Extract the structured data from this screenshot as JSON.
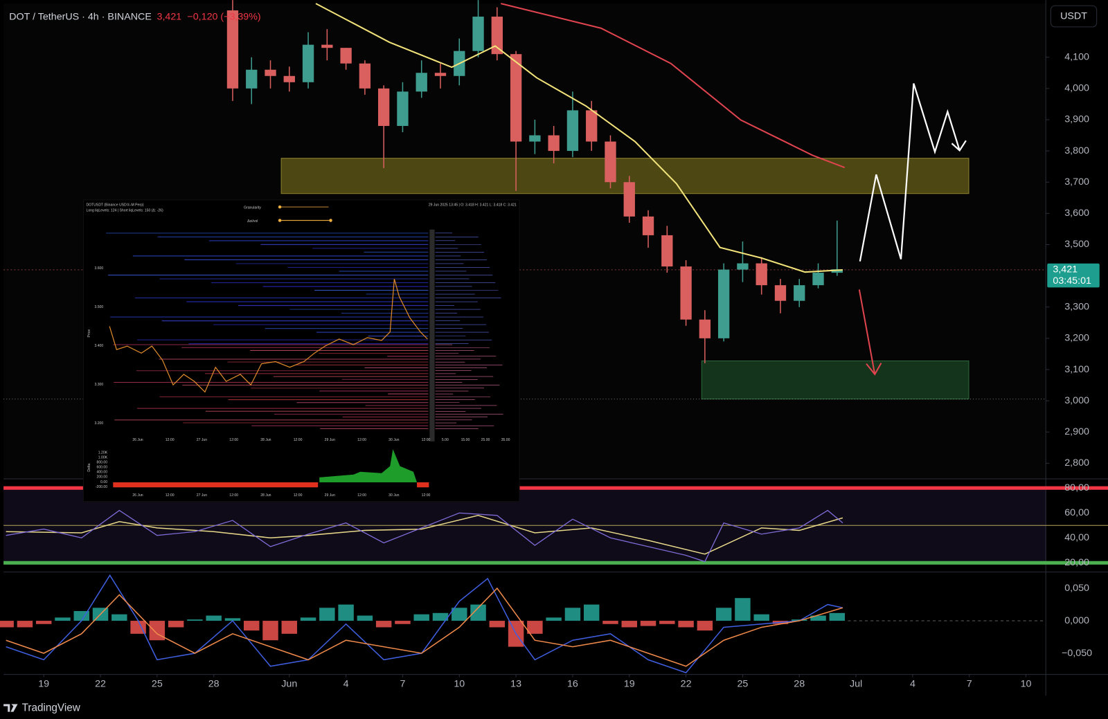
{
  "header": {
    "symbol": "DOT / TetherUS · 4h · BINANCE",
    "price": "3,421",
    "change": "−0,120 (−3,39%)"
  },
  "currency_button": "USDT",
  "price_label": {
    "price": "3,421",
    "countdown": "03:45:01"
  },
  "footer": "TradingView",
  "chart_data": [
    {
      "type": "candlestick",
      "x": [
        29,
        30,
        31,
        32,
        33,
        34,
        35,
        36,
        37,
        38,
        39,
        40,
        41,
        42,
        43,
        44,
        45,
        46,
        47,
        48,
        49,
        50,
        51,
        52,
        53,
        54,
        55,
        56,
        57,
        58,
        59,
        60,
        61
      ],
      "open": [
        4250,
        4000,
        4060,
        4040,
        4020,
        4140,
        4130,
        4080,
        4000,
        3880,
        3990,
        4050,
        4040,
        4120,
        4230,
        4110,
        3830,
        3850,
        3800,
        3930,
        3830,
        3700,
        3590,
        3530,
        3430,
        3260,
        3200,
        3420,
        3440,
        3370,
        3320,
        3370,
        3410
      ],
      "high": [
        4283,
        4100,
        4090,
        4070,
        4180,
        4190,
        4130,
        4090,
        4010,
        4020,
        4090,
        4080,
        4160,
        4283,
        4260,
        4120,
        3900,
        3880,
        3990,
        3960,
        3850,
        3720,
        3610,
        3560,
        3450,
        3290,
        3440,
        3510,
        3460,
        3390,
        3390,
        3440,
        3577
      ],
      "low": [
        3960,
        3950,
        4000,
        3990,
        4000,
        4090,
        4060,
        3980,
        3745,
        3860,
        3970,
        4000,
        4010,
        4100,
        4090,
        3672,
        3790,
        3760,
        3780,
        3800,
        3680,
        3570,
        3490,
        3410,
        3240,
        3120,
        3190,
        3380,
        3340,
        3280,
        3300,
        3360,
        3400
      ],
      "close": [
        4000,
        4060,
        4040,
        4020,
        4140,
        4130,
        4080,
        4000,
        3880,
        3990,
        4050,
        4040,
        4120,
        4230,
        4110,
        3830,
        3850,
        3800,
        3930,
        3830,
        3700,
        3590,
        3530,
        3430,
        3260,
        3200,
        3420,
        3440,
        3370,
        3320,
        3370,
        3410,
        3421
      ],
      "colors": {
        "up": "#3f9d8f",
        "down": "#d9605e"
      },
      "lines": [
        {
          "color": "#f2e27a",
          "x": [
            33.4,
            37.3,
            40.6,
            42.9,
            45.1,
            47.7,
            50.3,
            52.5,
            54.8,
            57,
            59.3,
            61.3
          ],
          "values": [
            4272,
            4148,
            4068,
            4136,
            4034,
            3944,
            3830,
            3695,
            3491,
            3457,
            3412,
            3419
          ]
        },
        {
          "color": "#e0444f",
          "x": [
            43.2,
            48.5,
            52.2,
            55.9,
            59.7,
            61.4
          ],
          "values": [
            4272,
            4193,
            4080,
            3899,
            3786,
            3747
          ]
        }
      ],
      "xlim": [
        16.87,
        72.05
      ],
      "xticks": [
        19,
        22,
        25,
        28,
        {
          "value": 32,
          "label": "Jun"
        },
        {
          "value": 35,
          "label": "4"
        },
        {
          "value": 38,
          "label": "7"
        },
        {
          "value": 41,
          "label": "10"
        },
        {
          "value": 44,
          "label": "13"
        },
        {
          "value": 47,
          "label": "16"
        },
        {
          "value": 50,
          "label": "19"
        },
        {
          "value": 53,
          "label": "22"
        },
        {
          "value": 56,
          "label": "25"
        },
        {
          "value": 59,
          "label": "28"
        },
        {
          "value": 62,
          "label": "Jul"
        },
        {
          "value": 65,
          "label": "4"
        },
        {
          "value": 68,
          "label": "7"
        },
        {
          "value": 71,
          "label": "10"
        }
      ],
      "ylim": [
        2750,
        4283
      ],
      "yticks": [
        {
          "value": 4100,
          "label": "4,100"
        },
        {
          "value": 4000,
          "label": "4,000"
        },
        {
          "value": 3900,
          "label": "3,900"
        },
        {
          "value": 3800,
          "label": "3,800"
        },
        {
          "value": 3700,
          "label": "3,700"
        },
        {
          "value": 3600,
          "label": "3,600"
        },
        {
          "value": 3500,
          "label": "3,500"
        },
        {
          "value": 3300,
          "label": "3,300"
        },
        {
          "value": 3200,
          "label": "3,200"
        },
        {
          "value": 3100,
          "label": "3,100"
        },
        {
          "value": 3000,
          "label": "3,000"
        },
        {
          "value": 2900,
          "label": "2,900"
        },
        {
          "value": 2800,
          "label": "2,800"
        }
      ],
      "grid": false
    },
    {
      "type": "rsi",
      "x": [
        17,
        19,
        21,
        23,
        25,
        27,
        29,
        31,
        33,
        35,
        37,
        39,
        41,
        43,
        45,
        47,
        49,
        51,
        53,
        54,
        55,
        57,
        59,
        60.5,
        61.3
      ],
      "values": [
        42,
        47,
        40,
        62,
        42,
        45,
        54,
        33,
        43,
        52,
        36,
        48,
        60,
        58,
        34,
        55,
        40,
        33,
        26,
        21,
        52,
        43,
        48,
        62,
        52
      ],
      "color": "#7e6bd6",
      "ma": {
        "color": "#e8d98a",
        "x": [
          17,
          21,
          23,
          25,
          28,
          31,
          33,
          36,
          39,
          42,
          45,
          48,
          51,
          54,
          57,
          59,
          61.3
        ],
        "values": [
          45,
          44,
          53,
          48,
          45,
          40,
          42,
          46,
          47,
          58,
          44,
          48,
          38,
          27,
          48,
          46,
          56
        ]
      },
      "levels": [
        {
          "value": 80,
          "color": "#f23645"
        },
        {
          "value": 50,
          "color": "#b8a85a"
        },
        {
          "value": 20,
          "color": "#4caf50"
        }
      ],
      "ylim": [
        12.6,
        86.2
      ],
      "yticks": [
        {
          "value": 80,
          "label": "80,00"
        },
        {
          "value": 60,
          "label": "60,00"
        },
        {
          "value": 40,
          "label": "40,00"
        },
        {
          "value": 20,
          "label": "20,00"
        }
      ]
    },
    {
      "type": "macd",
      "x": [
        17,
        18,
        19,
        20,
        21,
        22,
        23,
        24,
        25,
        26,
        27,
        28,
        29,
        30,
        31,
        32,
        33,
        34,
        35,
        36,
        37,
        38,
        39,
        40,
        41,
        42,
        43,
        44,
        45,
        46,
        47,
        48,
        49,
        50,
        51,
        52,
        53,
        54,
        55,
        56,
        57,
        58,
        59,
        60,
        61
      ],
      "histogram": [
        -0.01,
        -0.01,
        -0.005,
        0.005,
        0.015,
        0.02,
        0.01,
        -0.02,
        -0.03,
        -0.01,
        0.002,
        0.008,
        0.004,
        -0.015,
        -0.03,
        -0.02,
        0.005,
        0.02,
        0.025,
        0.008,
        -0.01,
        -0.005,
        0.01,
        0.012,
        0.02,
        0.025,
        -0.01,
        -0.04,
        -0.02,
        0.005,
        0.02,
        0.025,
        -0.005,
        -0.01,
        -0.008,
        -0.005,
        -0.01,
        -0.015,
        0.02,
        0.035,
        0.01,
        -0.005,
        0.002,
        0.008,
        0.012
      ],
      "colors": {
        "up": "#26a69a",
        "down": "#ef5350"
      },
      "macd": {
        "color": "#3f5fe0",
        "x": [
          17,
          19,
          21,
          22.5,
          24,
          25,
          27,
          29,
          31,
          33,
          35,
          37,
          39,
          41,
          42.5,
          44,
          45,
          47,
          49,
          51,
          53,
          55,
          57,
          59,
          60.5,
          61.3
        ],
        "values": [
          -0.04,
          -0.06,
          0.0,
          0.07,
          0.0,
          -0.06,
          -0.05,
          0.0,
          -0.07,
          -0.06,
          -0.005,
          -0.06,
          -0.05,
          0.03,
          0.065,
          -0.02,
          -0.06,
          -0.03,
          -0.02,
          -0.06,
          -0.08,
          -0.01,
          -0.005,
          0.0,
          0.025,
          0.02
        ]
      },
      "signal": {
        "color": "#f08a4b",
        "x": [
          17,
          19,
          21,
          23,
          25,
          27,
          29,
          31,
          33,
          35,
          37,
          39,
          41,
          43,
          45,
          47,
          49,
          51,
          53,
          55,
          57,
          59,
          61.3
        ],
        "values": [
          -0.03,
          -0.05,
          -0.02,
          0.04,
          -0.02,
          -0.05,
          -0.02,
          -0.04,
          -0.06,
          -0.03,
          -0.04,
          -0.05,
          -0.01,
          0.05,
          -0.03,
          -0.04,
          -0.03,
          -0.05,
          -0.07,
          -0.03,
          -0.01,
          0.0,
          0.02
        ]
      },
      "ylim": [
        -0.0826,
        0.0696
      ],
      "yticks": [
        {
          "value": 0.05,
          "label": "0,050"
        },
        {
          "value": 0,
          "label": "0,000"
        },
        {
          "value": -0.05,
          "label": "−0,050"
        }
      ]
    }
  ],
  "inset": {
    "title": "DOTUSDT (Binance USDⓈ-M Perp)",
    "subtitle": "Long liqLevels: 124 | Short liqLevels: 150 (Δ: -26)",
    "controls": [
      "Granularity",
      "Δoi/vol"
    ],
    "info": "29 Jun 2025 13:45 | O: 3.418 H: 3.421 L: 3.418 C: 3.421",
    "price_label": "Price",
    "price_ticks": [
      "3.600",
      "3.500",
      "3.400",
      "3.300",
      "3.200"
    ],
    "time_ticks": [
      "26 Jun",
      "12:00",
      "27 Jun",
      "12:00",
      "28 Jun",
      "12:00",
      "29 Jun",
      "12:00",
      "30 Jun",
      "12:00"
    ],
    "size_ticks": [
      "5.00",
      "15.00",
      "25.00",
      "35.00"
    ],
    "delta_label": "Delta",
    "delta_ticks": [
      "1.20K",
      "1.00K",
      "800.00",
      "600.00",
      "400.00",
      "200.00",
      "0.00",
      "-200.00"
    ]
  }
}
